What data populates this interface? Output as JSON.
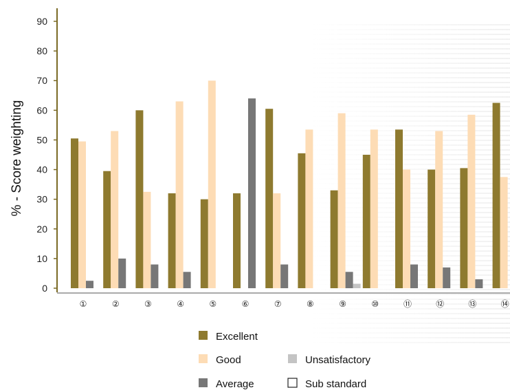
{
  "chart_data": {
    "type": "bar",
    "title": "",
    "xlabel": "",
    "ylabel": "% - Score weighting",
    "ylim": [
      0,
      90
    ],
    "yticks": [
      0,
      10,
      20,
      30,
      40,
      50,
      60,
      70,
      80,
      90
    ],
    "categories": [
      "①",
      "②",
      "③",
      "④",
      "⑤",
      "⑥",
      "⑦",
      "⑧",
      "⑨",
      "⑩",
      "⑪",
      "⑫",
      "⑬",
      "⑭"
    ],
    "series": [
      {
        "name": "Excellent",
        "color": "#8e7a2f",
        "values": [
          50.5,
          39.5,
          60,
          32,
          30,
          32,
          60.5,
          45.5,
          33,
          45,
          53.5,
          40,
          40.5,
          62.5
        ]
      },
      {
        "name": "Good",
        "color": "#fddcb5",
        "values": [
          49.5,
          53,
          32.5,
          63,
          70,
          0,
          32,
          53.5,
          59,
          53.5,
          40,
          53,
          58.5,
          37.5
        ]
      },
      {
        "name": "Average",
        "color": "#777777",
        "values": [
          2.5,
          10,
          8,
          5.5,
          0,
          64,
          8,
          0,
          5.5,
          0,
          8,
          7,
          3,
          0
        ]
      },
      {
        "name": "Unsatisfactory",
        "color": "#c4c4c4",
        "values": [
          0,
          0,
          0,
          0,
          0,
          0,
          0,
          0,
          1.5,
          0,
          0,
          0,
          0,
          0
        ]
      },
      {
        "name": "Sub standard",
        "color": "#ffffff",
        "values": [
          0,
          0,
          0,
          0,
          0,
          0,
          0,
          0,
          0,
          0,
          0,
          0,
          0,
          0
        ]
      }
    ],
    "legend": {
      "placement": "bottom",
      "items": [
        "Excellent",
        "Good",
        "Unsatisfactory",
        "Average",
        "Sub standard"
      ]
    },
    "grid": false
  }
}
